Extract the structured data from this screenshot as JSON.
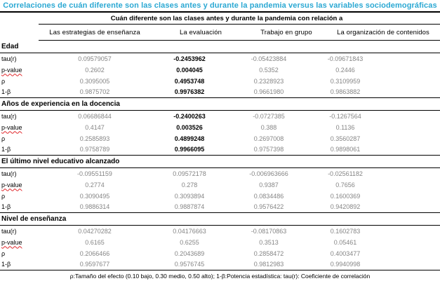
{
  "title": "Correlaciones de cuán diferente son las clases antes y durante la pandemia versus las variables sociodemográficas",
  "table": {
    "spanner": "Cuán diferente son las clases antes y durante la pandemia con relación a",
    "columns": [
      "Las estrategias de enseñanza",
      "La evaluación",
      "Trabajo en grupo",
      "La organización de contenidos"
    ],
    "row_labels": [
      "tau(r)",
      "p-value",
      "ρ",
      "1-β"
    ],
    "sections": [
      {
        "name": "Edad",
        "bold_col": 1,
        "rows": [
          [
            "0.09579057",
            "-0.2453962",
            "-0.05423884",
            "-0.09671843"
          ],
          [
            "0.2602",
            "0.004045",
            "0.5352",
            "0.2446"
          ],
          [
            "0.3095005",
            "0.4953748",
            "0.2328923",
            "0.3109959"
          ],
          [
            "0.9875702",
            "0.9976382",
            "0.9661980",
            "0.9863882"
          ]
        ]
      },
      {
        "name": "Años de experiencia en la docencia",
        "bold_col": 1,
        "rows": [
          [
            "0.06686844",
            "-0.2400263",
            "-0.0727385",
            "-0.1267564"
          ],
          [
            "0.4147",
            "0.003526",
            "0.388",
            "0.1136"
          ],
          [
            "0.2585893",
            "0.4899248",
            "0.2697008",
            "0.3560287"
          ],
          [
            "0.9758789",
            "0.9966095",
            "0.9757398",
            "0.9898061"
          ]
        ]
      },
      {
        "name": "El último nivel educativo alcanzado",
        "bold_col": -1,
        "rows": [
          [
            "-0.09551159",
            "0.09572178",
            "-0.006963666",
            "-0.02561182"
          ],
          [
            "0.2774",
            "0.278",
            "0.9387",
            "0.7656"
          ],
          [
            "0.3090495",
            "0.3093894",
            "0.0834486",
            "0.1600369"
          ],
          [
            "0.9886314",
            "0.9887874",
            "0.9576422",
            "0.9420892"
          ]
        ]
      },
      {
        "name": "Nivel de enseñanza",
        "bold_col": -1,
        "rows": [
          [
            "0.04270282",
            "0.04176663",
            "-0.08170863",
            "0.1602783"
          ],
          [
            "0.6165",
            "0.6255",
            "0.3513",
            "0.05461"
          ],
          [
            "0.2066466",
            "0.2043689",
            "0.2858472",
            "0.4003477"
          ],
          [
            "0.9597677",
            "0.9576745",
            "0.9812983",
            "0.9940998"
          ]
        ]
      }
    ]
  },
  "footnote": "ρ:Tamaño del efecto (0.10 bajo, 0.30 medio, 0.50 alto); 1-β:Potencia estadística: tau(r): Coeficiente de correlación",
  "colors": {
    "title_blue": "#2BA8D3",
    "value_gray": "#858585",
    "bold_value": "#000000",
    "spellcheck_red": "#e0262a",
    "rule_black": "#000000"
  }
}
